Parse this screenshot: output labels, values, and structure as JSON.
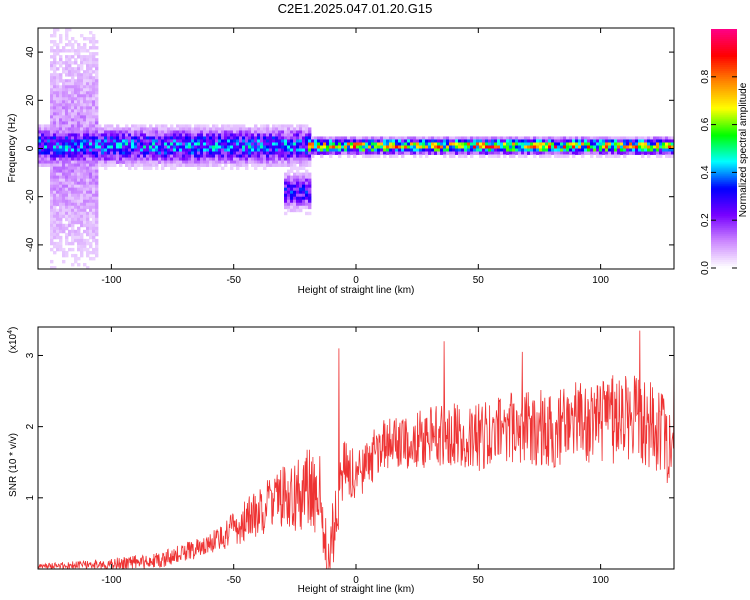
{
  "title": "C2E1.2025.047.01.20.G15",
  "chart_data": [
    {
      "type": "heatmap",
      "xlabel": "Height of straight line (km)",
      "ylabel": "Frequency (Hz)",
      "xlim": [
        -130,
        130
      ],
      "ylim": [
        -50,
        50
      ],
      "xticks": [
        -100,
        -50,
        0,
        50,
        100
      ],
      "yticks": [
        -40,
        -20,
        0,
        20,
        40
      ],
      "colorbar": {
        "label": "Normalized spectral amplitude",
        "range": [
          0,
          1
        ],
        "ticks": [
          0.0,
          0.2,
          0.4,
          0.6,
          0.8
        ],
        "tick_labels": [
          "0.0",
          "0.2",
          "0.4",
          "0.6",
          "0.8"
        ]
      },
      "features": [
        {
          "x_range": [
            -130,
            -18
          ],
          "freq_center": 1,
          "spread": 6,
          "peak": 0.5
        },
        {
          "x_range": [
            -20,
            130
          ],
          "freq_center": 1,
          "spread": 2.5,
          "peak": 0.95
        },
        {
          "x_range": [
            -30,
            -18
          ],
          "freq_center": -18,
          "spread": 6,
          "peak": 0.4
        },
        {
          "x_range": [
            -125,
            -105
          ],
          "freq_center": 0,
          "spread": 45,
          "peak": 0.15
        }
      ]
    },
    {
      "type": "line",
      "xlabel": "Height of straight line (km)",
      "ylabel": "SNR (10 * v/v)",
      "y_multiplier": "(x10",
      "y_multiplier_exp": "4",
      "y_multiplier_close": ")",
      "xlim": [
        -130,
        130
      ],
      "ylim": [
        0,
        3.4
      ],
      "xticks": [
        -100,
        -50,
        0,
        50,
        100
      ],
      "yticks": [
        1,
        2,
        3
      ],
      "line_color": "#ee3333",
      "envelope": {
        "x": [
          -130,
          -100,
          -80,
          -60,
          -50,
          -40,
          -30,
          -20,
          -14,
          -12,
          -5,
          0,
          10,
          20,
          30,
          40,
          50,
          60,
          70,
          80,
          90,
          100,
          110,
          120,
          130
        ],
        "y": [
          0.04,
          0.07,
          0.12,
          0.35,
          0.55,
          0.8,
          1.0,
          1.1,
          1.05,
          0.0,
          1.4,
          1.3,
          1.7,
          1.8,
          1.85,
          1.9,
          1.85,
          1.95,
          2.0,
          1.95,
          2.05,
          2.0,
          2.2,
          2.1,
          1.5
        ]
      },
      "amplitude": {
        "x": [
          -130,
          -60,
          -40,
          -20,
          -12,
          0,
          60,
          130
        ],
        "y": [
          0.03,
          0.15,
          0.35,
          0.6,
          0.5,
          0.35,
          0.5,
          0.7
        ]
      },
      "peaks": [
        {
          "x": -7,
          "y": 3.1
        },
        {
          "x": 36,
          "y": 3.2
        },
        {
          "x": 68,
          "y": 3.05
        },
        {
          "x": 116,
          "y": 3.35
        },
        {
          "x": 130,
          "y": 3.0
        }
      ]
    }
  ],
  "colors": {
    "colormap": [
      "#ffffff",
      "#cc88ff",
      "#7700ff",
      "#0000ff",
      "#00ffff",
      "#00ff00",
      "#ffff00",
      "#ff8800",
      "#ff0000",
      "#ff0088"
    ]
  }
}
